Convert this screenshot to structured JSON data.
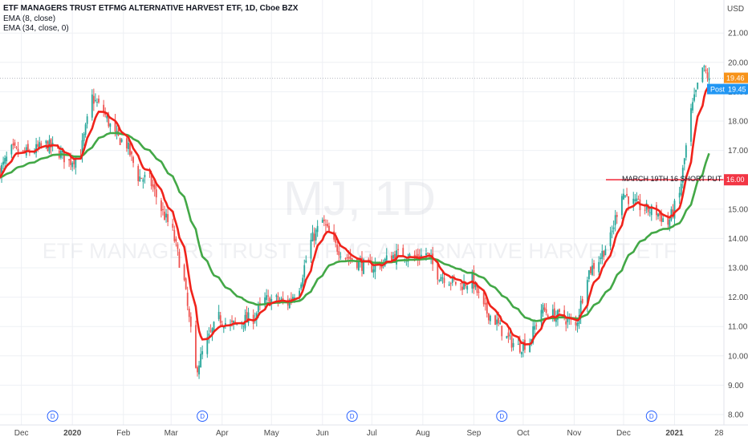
{
  "header": {
    "title": "ETF MANAGERS TRUST ETFMG ALTERNATIVE HARVEST ETF, 1D, Cboe BZX",
    "legend": [
      "EMA (8, close)",
      "EMA (34, close, 0)"
    ]
  },
  "watermark": {
    "symbol": "MJ, 1D",
    "name": "ETF MANAGERS TRUST ETFMG ALTERNATIVE HARVEST ETF"
  },
  "axis": {
    "currency": "USD",
    "y_ticks": [
      "21.00",
      "20.00",
      "19.00",
      "18.00",
      "17.00",
      "16.00",
      "15.00",
      "14.00",
      "13.00",
      "12.00",
      "11.00",
      "10.00",
      "9.00",
      "8.00"
    ],
    "x_labels": [
      "Dec",
      "2020",
      "Feb",
      "Mar",
      "Apr",
      "May",
      "Jun",
      "Jul",
      "Aug",
      "Sep",
      "Oct",
      "Nov",
      "Dec",
      "2021",
      "28"
    ]
  },
  "price_tags": {
    "last": "19.46",
    "post_label": "Post",
    "post_value": "19.45",
    "level": "16.00"
  },
  "annotation": {
    "text": "MARCH 19TH 16 SHORT PUT"
  },
  "dividend_marker": "D",
  "colors": {
    "up": "#26a69a",
    "down": "#ef5350",
    "ema_fast": "#f0231b",
    "ema_slow": "#43a847",
    "level_line": "#f23645",
    "last_tag": "#f7931a",
    "post_tag": "#2196f3",
    "dividend": "#2962ff",
    "grid": "#eef0f4"
  },
  "chart_data": {
    "type": "candlestick",
    "ylim": [
      8,
      21.3
    ],
    "y_scale": "linear",
    "grid": true,
    "price_anchors": [
      [
        "2019-11-18",
        16.3
      ],
      [
        "2019-11-25",
        17.0
      ],
      [
        "2019-12-02",
        16.9
      ],
      [
        "2019-12-09",
        17.0
      ],
      [
        "2019-12-16",
        17.2
      ],
      [
        "2019-12-23",
        17.0
      ],
      [
        "2019-12-30",
        16.6
      ],
      [
        "2020-01-06",
        16.9
      ],
      [
        "2020-01-13",
        18.8
      ],
      [
        "2020-01-20",
        18.3
      ],
      [
        "2020-01-27",
        17.5
      ],
      [
        "2020-02-03",
        17.2
      ],
      [
        "2020-02-10",
        16.1
      ],
      [
        "2020-02-17",
        16.0
      ],
      [
        "2020-02-24",
        15.0
      ],
      [
        "2020-03-02",
        14.2
      ],
      [
        "2020-03-09",
        12.5
      ],
      [
        "2020-03-16",
        9.5
      ],
      [
        "2020-03-23",
        10.5
      ],
      [
        "2020-03-30",
        11.3
      ],
      [
        "2020-04-06",
        11.0
      ],
      [
        "2020-04-13",
        11.2
      ],
      [
        "2020-04-20",
        11.3
      ],
      [
        "2020-04-27",
        11.9
      ],
      [
        "2020-05-04",
        11.9
      ],
      [
        "2020-05-11",
        11.8
      ],
      [
        "2020-05-18",
        12.4
      ],
      [
        "2020-05-25",
        13.9
      ],
      [
        "2020-06-01",
        14.6
      ],
      [
        "2020-06-08",
        13.8
      ],
      [
        "2020-06-15",
        13.4
      ],
      [
        "2020-06-22",
        13.2
      ],
      [
        "2020-06-29",
        13.0
      ],
      [
        "2020-07-06",
        13.1
      ],
      [
        "2020-07-13",
        13.4
      ],
      [
        "2020-07-20",
        13.5
      ],
      [
        "2020-07-27",
        13.3
      ],
      [
        "2020-08-03",
        13.5
      ],
      [
        "2020-08-10",
        12.8
      ],
      [
        "2020-08-17",
        12.6
      ],
      [
        "2020-08-24",
        12.4
      ],
      [
        "2020-08-31",
        12.6
      ],
      [
        "2020-09-07",
        11.6
      ],
      [
        "2020-09-14",
        11.2
      ],
      [
        "2020-09-21",
        10.6
      ],
      [
        "2020-09-28",
        10.3
      ],
      [
        "2020-10-05",
        10.5
      ],
      [
        "2020-10-12",
        11.6
      ],
      [
        "2020-10-19",
        11.4
      ],
      [
        "2020-10-26",
        11.3
      ],
      [
        "2020-11-02",
        11.0
      ],
      [
        "2020-11-09",
        12.8
      ],
      [
        "2020-11-16",
        13.3
      ],
      [
        "2020-11-23",
        14.0
      ],
      [
        "2020-11-30",
        15.6
      ],
      [
        "2020-12-07",
        15.2
      ],
      [
        "2020-12-14",
        15.0
      ],
      [
        "2020-12-21",
        14.9
      ],
      [
        "2020-12-28",
        14.5
      ],
      [
        "2021-01-04",
        15.5
      ],
      [
        "2021-01-11",
        18.3
      ],
      [
        "2021-01-18",
        19.8
      ],
      [
        "2021-01-22",
        19.46
      ]
    ],
    "ema_periods": [
      8,
      34
    ],
    "horizontal_level": 16.0,
    "dividend_dates": [
      "2019-12-20",
      "2020-03-20",
      "2020-06-19",
      "2020-09-18",
      "2020-12-18"
    ]
  }
}
